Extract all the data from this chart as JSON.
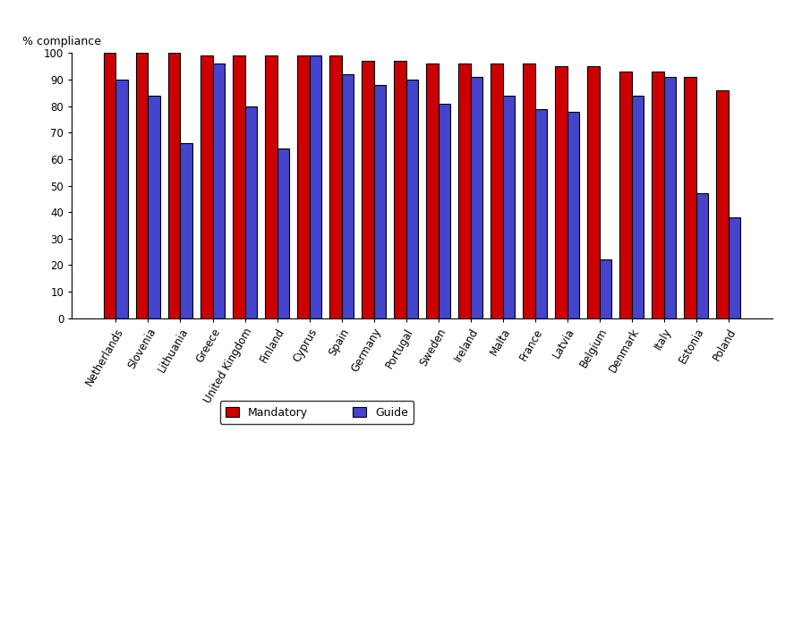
{
  "countries": [
    "Netherlands",
    "Slovenia",
    "Lithuania",
    "Greece",
    "United Kingdom",
    "Finland",
    "Cyprus",
    "Spain",
    "Germany",
    "Portugal",
    "Sweden",
    "Ireland",
    "Malta",
    "France",
    "Latvia",
    "Belgium",
    "Denmark",
    "Italy",
    "Estonia",
    "Poland"
  ],
  "mandatory": [
    100,
    100,
    100,
    99,
    99,
    99,
    99,
    99,
    97,
    97,
    96,
    96,
    96,
    96,
    95,
    95,
    93,
    93,
    91,
    86
  ],
  "guide": [
    90,
    84,
    66,
    96,
    80,
    64,
    99,
    92,
    88,
    90,
    81,
    91,
    84,
    79,
    78,
    22,
    84,
    91,
    47,
    38
  ],
  "mandatory_color": "#CC0000",
  "guide_color": "#4444CC",
  "ylabel": "% compliance",
  "ylim": [
    0,
    100
  ],
  "yticks": [
    0,
    10,
    20,
    30,
    40,
    50,
    60,
    70,
    80,
    90,
    100
  ],
  "legend_labels": [
    "Mandatory",
    "Guide"
  ],
  "bar_width": 0.38,
  "label_fontsize": 9,
  "tick_fontsize": 8.5,
  "legend_fontsize": 9
}
